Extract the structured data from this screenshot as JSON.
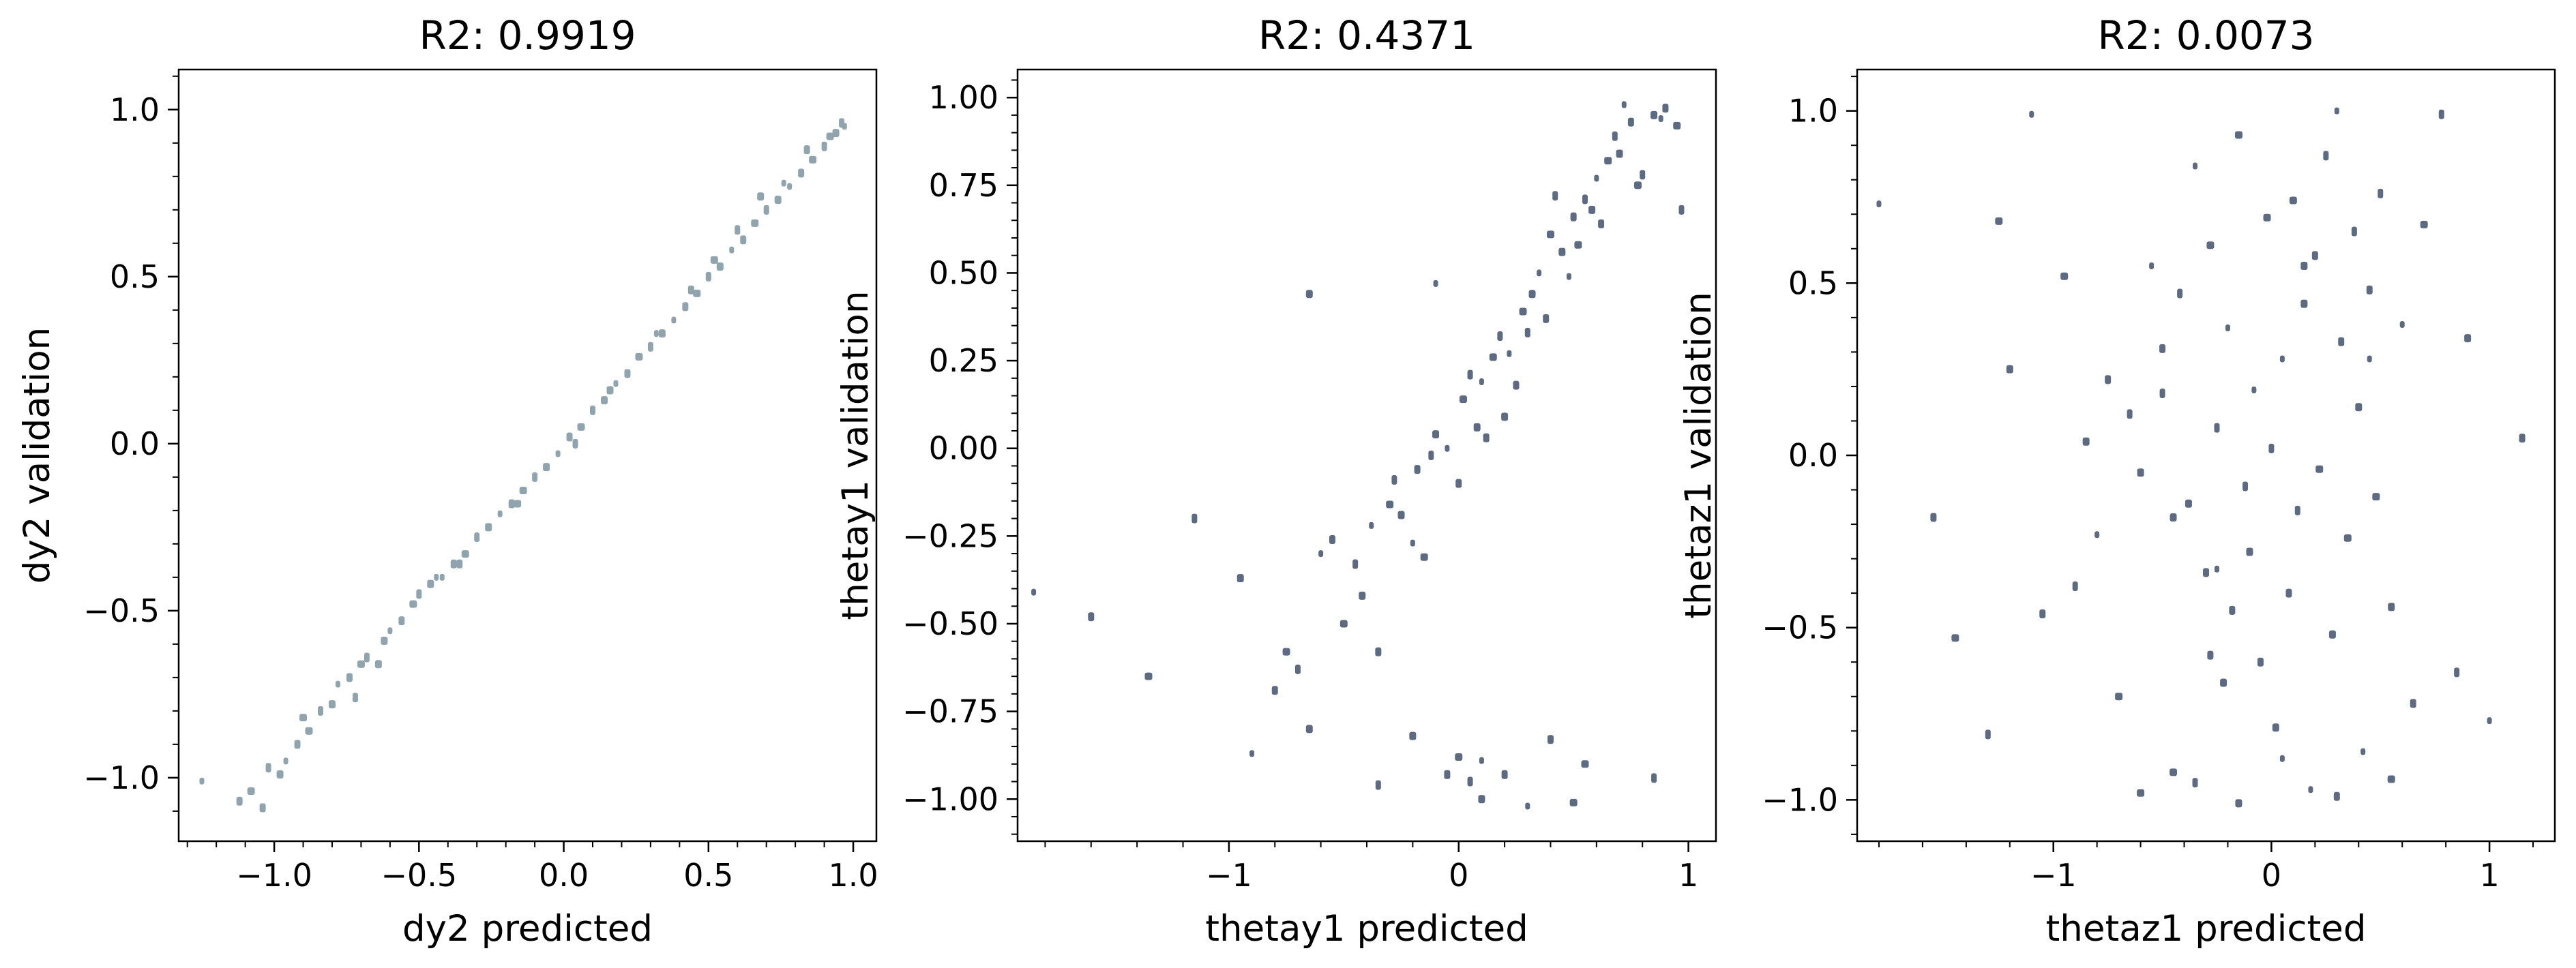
{
  "chart_data": [
    {
      "type": "scatter",
      "title": "R2: 0.9919",
      "xlabel": "dy2 predicted",
      "ylabel": "dy2 validation",
      "xlim": [
        -1.33,
        1.08
      ],
      "ylim": [
        -1.19,
        1.12
      ],
      "xticks": [
        -1.0,
        -0.5,
        0.0,
        0.5,
        1.0
      ],
      "xtick_labels": [
        "−1.0",
        "−0.5",
        "0.0",
        "0.5",
        "1.0"
      ],
      "yticks": [
        -1.0,
        -0.5,
        0.0,
        0.5,
        1.0
      ],
      "ytick_labels": [
        "−1.0",
        "−0.5",
        "0.0",
        "0.5",
        "1.0"
      ],
      "grid": false,
      "colors": {
        "points": "#90a4ae",
        "dense": "#2b2b3a"
      },
      "series": [
        {
          "x": [
            -1.25,
            -1.12,
            -1.08,
            -1.02,
            -0.98,
            -0.96,
            -0.92,
            -0.88,
            -0.84,
            -0.8,
            -0.78,
            -0.74,
            -0.7,
            -0.68,
            -0.62,
            -0.6,
            -0.56,
            -0.52,
            -0.5,
            -0.46,
            -0.42,
            -0.38,
            -0.34,
            -0.3,
            -0.26,
            -0.22,
            -0.18,
            -0.14,
            -0.1,
            -0.06,
            -0.02,
            0.02,
            0.06,
            0.1,
            0.14,
            0.18,
            0.22,
            0.26,
            0.3,
            0.34,
            0.38,
            0.42,
            0.46,
            0.5,
            0.54,
            0.58,
            0.62,
            0.66,
            0.7,
            0.74,
            0.78,
            0.82,
            0.86,
            0.9,
            0.94,
            0.97,
            -1.04,
            -0.9,
            -0.72,
            -0.64,
            -0.44,
            -0.36,
            -0.16,
            0.04,
            0.16,
            0.32,
            0.44,
            0.52,
            0.6,
            0.68,
            0.76,
            0.84,
            0.92,
            0.96
          ],
          "y": [
            -1.01,
            -1.07,
            -1.04,
            -0.97,
            -0.99,
            -0.95,
            -0.9,
            -0.86,
            -0.8,
            -0.78,
            -0.72,
            -0.7,
            -0.66,
            -0.64,
            -0.59,
            -0.56,
            -0.53,
            -0.48,
            -0.45,
            -0.42,
            -0.4,
            -0.36,
            -0.33,
            -0.28,
            -0.25,
            -0.21,
            -0.18,
            -0.14,
            -0.1,
            -0.07,
            -0.03,
            0.02,
            0.05,
            0.1,
            0.13,
            0.18,
            0.21,
            0.26,
            0.29,
            0.33,
            0.37,
            0.41,
            0.45,
            0.5,
            0.53,
            0.58,
            0.61,
            0.66,
            0.7,
            0.73,
            0.77,
            0.81,
            0.85,
            0.89,
            0.93,
            0.95,
            -1.09,
            -0.82,
            -0.76,
            -0.66,
            -0.4,
            -0.36,
            -0.18,
            0.0,
            0.16,
            0.33,
            0.46,
            0.55,
            0.64,
            0.74,
            0.78,
            0.88,
            0.92,
            0.96
          ]
        }
      ]
    },
    {
      "type": "scatter",
      "title": "R2: 0.4371",
      "xlabel": "thetay1 predicted",
      "ylabel": "thetay1 validation",
      "xlim": [
        -1.92,
        1.12
      ],
      "ylim": [
        -1.12,
        1.08
      ],
      "xticks": [
        -1,
        0,
        1
      ],
      "xtick_labels": [
        "−1",
        "0",
        "1"
      ],
      "yticks": [
        -1.0,
        -0.75,
        -0.5,
        -0.25,
        0.0,
        0.25,
        0.5,
        0.75,
        1.0
      ],
      "ytick_labels": [
        "−1.00",
        "−0.75",
        "−0.50",
        "−0.25",
        "0.00",
        "0.25",
        "0.50",
        "0.75",
        "1.00"
      ],
      "grid": false,
      "colors": {
        "points": "#5d6b82",
        "dense": "#000000"
      },
      "series": [
        {
          "x": [
            -1.85,
            -1.6,
            -1.35,
            -1.15,
            -0.95,
            -0.9,
            -0.8,
            -0.75,
            -0.7,
            -0.65,
            -0.6,
            -0.55,
            -0.5,
            -0.45,
            -0.42,
            -0.38,
            -0.35,
            -0.3,
            -0.28,
            -0.25,
            -0.2,
            -0.18,
            -0.15,
            -0.12,
            -0.1,
            -0.05,
            0.0,
            0.02,
            0.05,
            0.08,
            0.1,
            0.12,
            0.15,
            0.18,
            0.2,
            0.22,
            0.25,
            0.28,
            0.3,
            0.32,
            0.35,
            0.38,
            0.4,
            0.42,
            0.45,
            0.48,
            0.5,
            0.52,
            0.55,
            0.58,
            0.6,
            0.62,
            0.65,
            0.68,
            0.7,
            0.72,
            0.75,
            0.78,
            0.8,
            0.85,
            0.88,
            0.9,
            0.95,
            0.97,
            -0.65,
            -0.1,
            -0.05,
            0.0,
            0.05,
            0.1,
            0.3,
            0.4,
            0.55,
            -0.35,
            -0.2,
            0.1,
            0.2,
            0.5,
            0.85
          ],
          "y": [
            -0.41,
            -0.48,
            -0.65,
            -0.2,
            -0.37,
            -0.87,
            -0.69,
            -0.58,
            -0.63,
            -0.8,
            -0.3,
            -0.26,
            -0.5,
            -0.33,
            -0.42,
            -0.22,
            -0.58,
            -0.16,
            -0.09,
            -0.19,
            -0.27,
            -0.06,
            -0.31,
            -0.02,
            0.04,
            0.0,
            -0.1,
            0.14,
            0.21,
            0.06,
            0.19,
            0.03,
            0.26,
            0.32,
            0.09,
            0.27,
            0.18,
            0.39,
            0.33,
            0.44,
            0.5,
            0.37,
            0.61,
            0.72,
            0.56,
            0.49,
            0.66,
            0.58,
            0.71,
            0.68,
            0.77,
            0.64,
            0.82,
            0.89,
            0.84,
            0.98,
            0.93,
            0.75,
            0.78,
            0.95,
            0.94,
            0.97,
            0.92,
            0.68,
            0.44,
            0.47,
            -0.93,
            -0.88,
            -0.95,
            -1.0,
            -1.02,
            -0.83,
            -0.9,
            -0.96,
            -0.82,
            -0.89,
            -0.93,
            -1.01,
            -0.94
          ]
        }
      ]
    },
    {
      "type": "scatter",
      "title": "R2: 0.0073",
      "xlabel": "thetaz1 predicted",
      "ylabel": "thetaz1 validation",
      "xlim": [
        -1.9,
        1.3
      ],
      "ylim": [
        -1.12,
        1.12
      ],
      "xticks": [
        -1,
        0,
        1
      ],
      "xtick_labels": [
        "−1",
        "0",
        "1"
      ],
      "yticks": [
        -1.0,
        -0.5,
        0.0,
        0.5,
        1.0
      ],
      "ytick_labels": [
        "−1.0",
        "−0.5",
        "0.0",
        "0.5",
        "1.0"
      ],
      "grid": false,
      "colors": {
        "points": "#5d6b82",
        "dense": "#000000"
      },
      "series": [
        {
          "x": [
            -1.8,
            -1.55,
            -1.45,
            -1.3,
            -1.2,
            -1.1,
            -1.05,
            -0.95,
            -0.9,
            -0.85,
            -0.8,
            -0.75,
            -0.7,
            -0.65,
            -0.6,
            -0.55,
            -0.5,
            -0.45,
            -0.42,
            -0.38,
            -0.35,
            -0.3,
            -0.28,
            -0.25,
            -0.22,
            -0.2,
            -0.18,
            -0.15,
            -0.12,
            -0.1,
            -0.08,
            -0.05,
            -0.02,
            0.0,
            0.02,
            0.05,
            0.08,
            0.1,
            0.12,
            0.15,
            0.18,
            0.2,
            0.22,
            0.25,
            0.28,
            0.3,
            0.32,
            0.35,
            0.38,
            0.4,
            0.42,
            0.45,
            0.48,
            0.5,
            0.55,
            0.6,
            0.65,
            0.7,
            0.78,
            0.9,
            1.0,
            1.15,
            -0.6,
            -0.35,
            -0.15,
            0.05,
            0.3,
            0.55,
            -0.5,
            0.15,
            -0.25,
            -0.28,
            -1.25,
            0.85,
            -0.45,
            0.45
          ],
          "y": [
            0.73,
            -0.18,
            -0.53,
            -0.81,
            0.25,
            0.99,
            -0.46,
            0.52,
            -0.38,
            0.04,
            -0.23,
            0.22,
            -0.7,
            0.12,
            -0.05,
            0.55,
            0.31,
            -0.92,
            0.47,
            -0.14,
            0.84,
            -0.34,
            0.61,
            0.08,
            -0.66,
            0.37,
            -0.45,
            0.93,
            -0.09,
            -0.28,
            0.19,
            -0.6,
            0.69,
            0.02,
            -0.79,
            0.28,
            -0.4,
            0.74,
            -0.16,
            0.44,
            -0.97,
            0.58,
            -0.04,
            0.87,
            -0.52,
            1.0,
            0.33,
            -0.24,
            0.65,
            0.14,
            -0.86,
            0.48,
            -0.12,
            0.76,
            -0.44,
            0.38,
            -0.72,
            0.67,
            0.99,
            0.34,
            -0.77,
            0.05,
            -0.98,
            -0.95,
            -1.01,
            -0.88,
            -0.99,
            -0.94,
            0.18,
            0.55,
            -0.33,
            -0.58,
            0.68,
            -0.63,
            -0.18,
            0.28
          ]
        }
      ]
    }
  ]
}
